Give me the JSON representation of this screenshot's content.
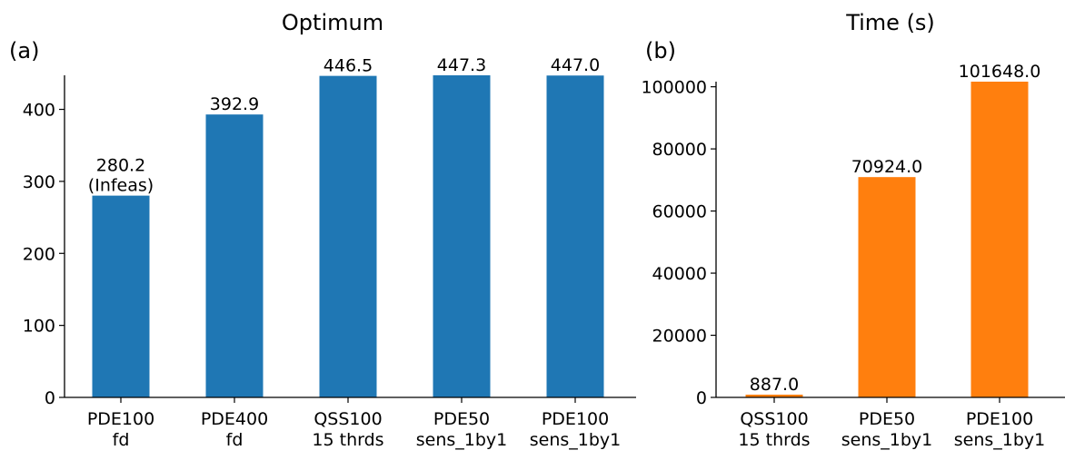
{
  "chart_data": [
    {
      "panel_label": "(a)",
      "type": "bar",
      "title": "Optimum",
      "categories": [
        "PDE100\nfd",
        "PDE400\nfd",
        "QSS100\n15 thrds",
        "PDE50\nsens_1by1",
        "PDE100\nsens_1by1"
      ],
      "values": [
        280.2,
        392.9,
        446.5,
        447.3,
        447.0
      ],
      "data_labels": [
        "280.2\n(Infeas)",
        "392.9",
        "446.5",
        "447.3",
        "447.0"
      ],
      "yticks": [
        0,
        100,
        200,
        300,
        400
      ],
      "ylim": [
        0,
        447.3
      ],
      "color": "#1f77b4",
      "grid": false
    },
    {
      "panel_label": "(b)",
      "type": "bar",
      "title": "Time (s)",
      "categories": [
        "QSS100\n15 thrds",
        "PDE50\nsens_1by1",
        "PDE100\nsens_1by1"
      ],
      "values": [
        887.0,
        70924.0,
        101648.0
      ],
      "data_labels": [
        "887.0",
        "70924.0",
        "101648.0"
      ],
      "yticks": [
        0,
        20000,
        40000,
        60000,
        80000,
        100000
      ],
      "ylim": [
        0,
        101648.0
      ],
      "color": "#ff7f0e",
      "grid": false
    }
  ]
}
